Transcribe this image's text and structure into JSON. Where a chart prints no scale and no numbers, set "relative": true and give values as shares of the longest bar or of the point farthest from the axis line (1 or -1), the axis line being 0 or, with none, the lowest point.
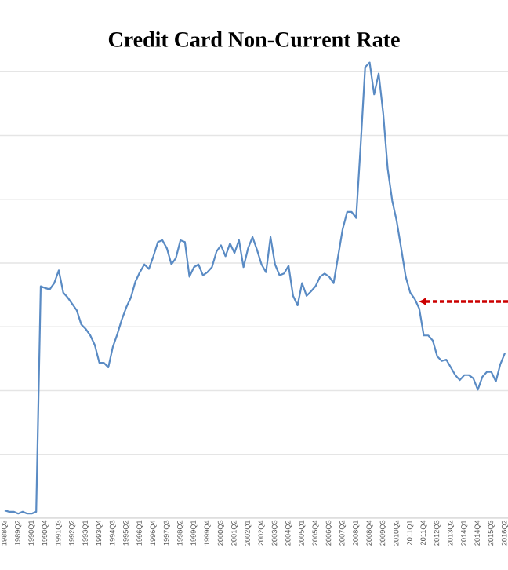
{
  "chart_data": {
    "type": "line",
    "title": "Credit Card Non-Current Rate",
    "relative": true,
    "grid": "y",
    "categories": [
      "1988Q3",
      null,
      null,
      "1989Q2",
      null,
      null,
      "1990Q1",
      null,
      null,
      "1990Q4",
      null,
      null,
      "1991Q3",
      null,
      null,
      "1992Q2",
      null,
      null,
      "1993Q1",
      null,
      null,
      "1993Q4",
      null,
      null,
      "1994Q3",
      null,
      null,
      "1995Q2",
      null,
      null,
      "1996Q1",
      null,
      null,
      "1996Q4",
      null,
      null,
      "1997Q3",
      null,
      null,
      "1998Q2",
      null,
      null,
      "1999Q1",
      null,
      null,
      "1999Q4",
      null,
      null,
      "2000Q3",
      null,
      null,
      "2001Q2",
      null,
      null,
      "2002Q1",
      null,
      null,
      "2002Q4",
      null,
      null,
      "2003Q3",
      null,
      null,
      "2004Q2",
      null,
      null,
      "2005Q1",
      null,
      null,
      "2005Q4",
      null,
      null,
      "2006Q3",
      null,
      null,
      "2007Q2",
      null,
      null,
      "2008Q1",
      null,
      null,
      "2008Q4",
      null,
      null,
      "2009Q3",
      null,
      null,
      "2010Q2",
      null,
      null,
      "2011Q1",
      null,
      null,
      "2011Q4",
      null,
      null,
      "2012Q3",
      null,
      null,
      "2013Q2",
      null,
      null,
      "2014Q1",
      null,
      null,
      "2014Q4",
      null,
      null,
      "2015Q3",
      null,
      null,
      "2016Q2"
    ],
    "series": [
      {
        "color": "#5a8bc4",
        "values": [
          0.017,
          0.014,
          0.014,
          0.01,
          0.014,
          0.01,
          0.01,
          0.014,
          0.509,
          0.505,
          0.502,
          0.516,
          0.544,
          0.495,
          0.484,
          0.47,
          0.456,
          0.425,
          0.415,
          0.401,
          0.38,
          0.341,
          0.341,
          0.331,
          0.376,
          0.404,
          0.436,
          0.463,
          0.484,
          0.519,
          0.54,
          0.557,
          0.547,
          0.575,
          0.606,
          0.61,
          0.592,
          0.557,
          0.571,
          0.61,
          0.606,
          0.53,
          0.551,
          0.557,
          0.533,
          0.54,
          0.551,
          0.585,
          0.599,
          0.575,
          0.603,
          0.582,
          0.61,
          0.551,
          0.592,
          0.617,
          0.589,
          0.557,
          0.54,
          0.617,
          0.557,
          0.533,
          0.537,
          0.554,
          0.488,
          0.467,
          0.516,
          0.488,
          0.498,
          0.509,
          0.53,
          0.537,
          0.53,
          0.516,
          0.575,
          0.634,
          0.672,
          0.672,
          0.659,
          0.819,
          0.99,
          1.0,
          0.93,
          0.976,
          0.889,
          0.767,
          0.697,
          0.652,
          0.592,
          0.53,
          0.495,
          0.481,
          0.46,
          0.401,
          0.401,
          0.39,
          0.355,
          0.345,
          0.348,
          0.331,
          0.314,
          0.303,
          0.314,
          0.314,
          0.307,
          0.282,
          0.31,
          0.321,
          0.321,
          0.3,
          0.338,
          0.362
        ]
      }
    ]
  }
}
